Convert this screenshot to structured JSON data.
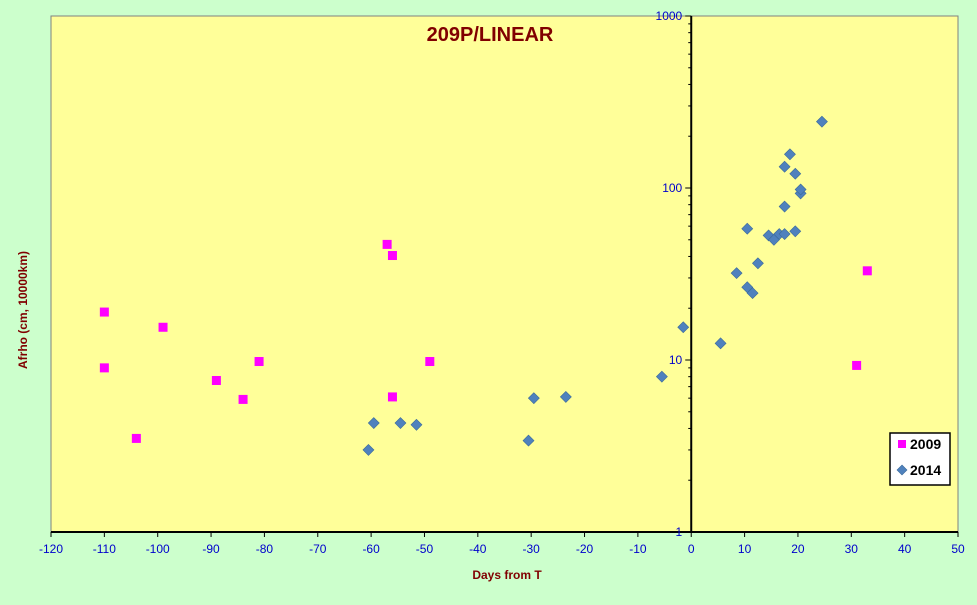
{
  "chart_data": {
    "type": "scatter",
    "title": "209P/LINEAR",
    "xlabel": "Days from T",
    "ylabel": "Afrho (cm, 10000km)",
    "xlim": [
      -120,
      50
    ],
    "ylim": [
      1,
      1000
    ],
    "yscale": "log",
    "x_ticks": [
      -120,
      -110,
      -100,
      -90,
      -80,
      -70,
      -60,
      -50,
      -40,
      -30,
      -20,
      -10,
      0,
      10,
      20,
      30,
      40,
      50
    ],
    "y_ticks": [
      1,
      10,
      100,
      1000
    ],
    "vertical_reference_line_x": 0,
    "grid": false,
    "legend_position": "bottom-right",
    "colors": {
      "plot_background": "#ffff99",
      "page_background": "#ccffcc",
      "title": "#800000",
      "axis_labels": "#800000",
      "tick_labels": "#0000cc",
      "series_2009": "#ff00ff",
      "series_2014": "#4f81bd"
    },
    "series": [
      {
        "name": "2009",
        "marker": "square",
        "points": [
          [
            -110,
            19
          ],
          [
            -110,
            9
          ],
          [
            -104,
            3.5
          ],
          [
            -99,
            15.5
          ],
          [
            -89,
            7.6
          ],
          [
            -84,
            5.9
          ],
          [
            -81,
            9.8
          ],
          [
            -57,
            47
          ],
          [
            -56,
            40.5
          ],
          [
            -56,
            6.1
          ],
          [
            -49,
            9.8
          ],
          [
            31,
            9.3
          ],
          [
            33,
            33
          ]
        ]
      },
      {
        "name": "2014",
        "marker": "diamond",
        "points": [
          [
            -60.5,
            3.0
          ],
          [
            -59.5,
            4.3
          ],
          [
            -54.5,
            4.3
          ],
          [
            -51.5,
            4.2
          ],
          [
            -30.5,
            3.4
          ],
          [
            -29.5,
            6.0
          ],
          [
            -23.5,
            6.1
          ],
          [
            -5.5,
            8.0
          ],
          [
            -1.5,
            15.5
          ],
          [
            5.5,
            12.5
          ],
          [
            8.5,
            32
          ],
          [
            10.5,
            58
          ],
          [
            10.5,
            26.5
          ],
          [
            11.5,
            24.5
          ],
          [
            12.5,
            36.5
          ],
          [
            14.5,
            53
          ],
          [
            15.5,
            50
          ],
          [
            16.5,
            54
          ],
          [
            17.5,
            78
          ],
          [
            17.5,
            54
          ],
          [
            17.5,
            133
          ],
          [
            18.5,
            157
          ],
          [
            19.5,
            121
          ],
          [
            19.5,
            56
          ],
          [
            20.5,
            93
          ],
          [
            20.5,
            98
          ],
          [
            24.5,
            243
          ]
        ]
      }
    ]
  }
}
